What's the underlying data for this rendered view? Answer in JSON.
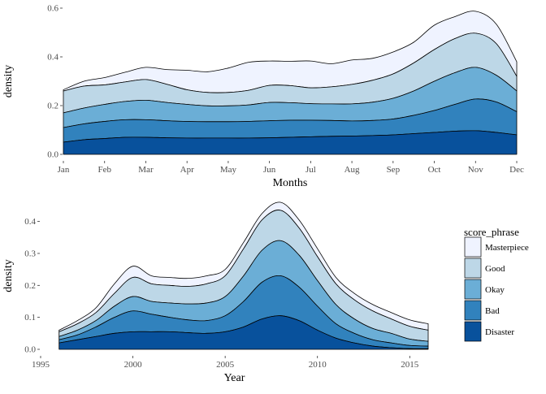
{
  "chart_data": [
    {
      "type": "area",
      "stacking": "stacked-density",
      "xlabel": "Months",
      "ylabel": "density",
      "categories": [
        "Jan",
        "Feb",
        "Mar",
        "Apr",
        "May",
        "Jun",
        "Jul",
        "Aug",
        "Sep",
        "Oct",
        "Nov",
        "Dec"
      ],
      "x": [
        1,
        1.5,
        2,
        2.5,
        3,
        3.5,
        4,
        4.5,
        5,
        5.5,
        6,
        6.5,
        7,
        7.5,
        8,
        8.5,
        9,
        9.5,
        10,
        10.5,
        11,
        11.5,
        12
      ],
      "yticks": [
        0.0,
        0.2,
        0.4,
        0.6
      ],
      "ytick_labels": [
        "0.0",
        "0.2",
        "0.4",
        "0.6"
      ],
      "ylim": [
        0,
        0.6
      ],
      "grid": false,
      "series": [
        {
          "name": "Disaster",
          "values": [
            0.05,
            0.06,
            0.065,
            0.07,
            0.07,
            0.068,
            0.067,
            0.067,
            0.067,
            0.067,
            0.068,
            0.07,
            0.072,
            0.074,
            0.075,
            0.077,
            0.08,
            0.085,
            0.09,
            0.095,
            0.097,
            0.09,
            0.08
          ]
        },
        {
          "name": "Bad",
          "values": [
            0.06,
            0.065,
            0.07,
            0.072,
            0.072,
            0.07,
            0.068,
            0.067,
            0.067,
            0.068,
            0.07,
            0.07,
            0.068,
            0.065,
            0.062,
            0.062,
            0.065,
            0.075,
            0.09,
            0.11,
            0.13,
            0.125,
            0.095
          ]
        },
        {
          "name": "Okay",
          "values": [
            0.06,
            0.065,
            0.07,
            0.075,
            0.08,
            0.075,
            0.07,
            0.065,
            0.065,
            0.068,
            0.075,
            0.072,
            0.068,
            0.068,
            0.07,
            0.075,
            0.085,
            0.1,
            0.12,
            0.13,
            0.13,
            0.11,
            0.085
          ]
        },
        {
          "name": "Good",
          "values": [
            0.09,
            0.09,
            0.08,
            0.08,
            0.085,
            0.075,
            0.06,
            0.055,
            0.055,
            0.06,
            0.07,
            0.07,
            0.065,
            0.07,
            0.08,
            0.09,
            0.1,
            0.115,
            0.13,
            0.14,
            0.14,
            0.13,
            0.06
          ]
        },
        {
          "name": "Masterpiece",
          "values": [
            0.005,
            0.02,
            0.03,
            0.04,
            0.05,
            0.06,
            0.08,
            0.085,
            0.1,
            0.115,
            0.1,
            0.1,
            0.11,
            0.095,
            0.1,
            0.09,
            0.09,
            0.085,
            0.1,
            0.09,
            0.09,
            0.08,
            0.06
          ]
        }
      ]
    },
    {
      "type": "area",
      "stacking": "stacked-density",
      "xlabel": "Year",
      "ylabel": "density",
      "xticks": [
        1995,
        2000,
        2005,
        2010,
        2015
      ],
      "xtick_labels": [
        "1995",
        "2000",
        "2005",
        "2010",
        "2015"
      ],
      "xlim": [
        1995,
        2016
      ],
      "x": [
        1996,
        1997,
        1998,
        1999,
        2000,
        2001,
        2002,
        2003,
        2004,
        2005,
        2006,
        2007,
        2008,
        2009,
        2010,
        2011,
        2012,
        2013,
        2014,
        2015,
        2016
      ],
      "yticks": [
        0.0,
        0.1,
        0.2,
        0.3,
        0.4
      ],
      "ytick_labels": [
        "0.0",
        "0.1",
        "0.2",
        "0.3",
        "0.4"
      ],
      "ylim": [
        0,
        0.46
      ],
      "grid": false,
      "series": [
        {
          "name": "Disaster",
          "values": [
            0.02,
            0.03,
            0.04,
            0.05,
            0.055,
            0.055,
            0.055,
            0.052,
            0.05,
            0.055,
            0.07,
            0.095,
            0.105,
            0.09,
            0.06,
            0.035,
            0.02,
            0.01,
            0.005,
            0.002,
            0.002
          ]
        },
        {
          "name": "Bad",
          "values": [
            0.01,
            0.015,
            0.03,
            0.05,
            0.065,
            0.055,
            0.045,
            0.04,
            0.04,
            0.05,
            0.08,
            0.115,
            0.125,
            0.105,
            0.075,
            0.045,
            0.03,
            0.02,
            0.015,
            0.01,
            0.008
          ]
        },
        {
          "name": "Okay",
          "values": [
            0.01,
            0.015,
            0.02,
            0.035,
            0.045,
            0.04,
            0.045,
            0.05,
            0.055,
            0.06,
            0.08,
            0.1,
            0.11,
            0.1,
            0.08,
            0.06,
            0.045,
            0.035,
            0.03,
            0.02,
            0.015
          ]
        },
        {
          "name": "Good",
          "values": [
            0.015,
            0.02,
            0.025,
            0.04,
            0.06,
            0.055,
            0.055,
            0.055,
            0.06,
            0.065,
            0.085,
            0.095,
            0.095,
            0.085,
            0.075,
            0.065,
            0.06,
            0.055,
            0.045,
            0.04,
            0.035
          ]
        },
        {
          "name": "Masterpiece",
          "values": [
            0.005,
            0.01,
            0.015,
            0.03,
            0.035,
            0.025,
            0.025,
            0.025,
            0.025,
            0.02,
            0.02,
            0.02,
            0.025,
            0.025,
            0.025,
            0.02,
            0.02,
            0.02,
            0.02,
            0.02,
            0.02
          ]
        }
      ]
    }
  ],
  "legend": {
    "title": "score_phrase",
    "placement": "right",
    "entries": [
      "Masterpiece",
      "Good",
      "Okay",
      "Bad",
      "Disaster"
    ]
  },
  "colors": {
    "Disaster": "#08519c",
    "Bad": "#3182bd",
    "Okay": "#6baed6",
    "Good": "#bdd7e7",
    "Masterpiece": "#eff3ff",
    "outline": "#000000",
    "axis_text": "#4d4d4d"
  }
}
